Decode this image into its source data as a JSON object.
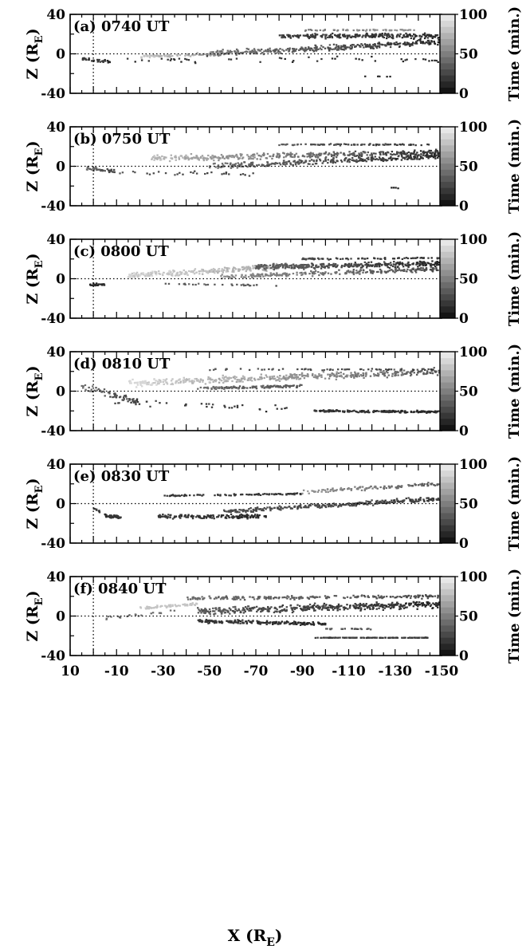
{
  "chart_data": {
    "type": "scatter",
    "xlabel_main": "X (R",
    "xlabel_sub": "E",
    "xlabel_close": ")",
    "ylabel_main": "Z (R",
    "ylabel_sub": "E",
    "ylabel_close": ")",
    "colorbar_label": "Time (min.)",
    "colorbar_range": [
      0,
      100
    ],
    "colorbar_ticks": [
      "0",
      "50",
      "100"
    ],
    "xlim": [
      10,
      -150
    ],
    "ylim": [
      -40,
      40
    ],
    "x_ticks": [
      "10",
      "-10",
      "-30",
      "-50",
      "-70",
      "-90",
      "-110",
      "-130",
      "-150"
    ],
    "y_ticks": [
      "40",
      "0",
      "-40"
    ],
    "reference_x": 0,
    "reference_z": 0,
    "grid": false,
    "panels": [
      {
        "label": "(a) 0740 UT",
        "clusters": [
          {
            "x": [
              -50,
              -150
            ],
            "z": [
              0,
              12
            ],
            "spread": 4,
            "time": [
              45,
              10
            ],
            "count": 350
          },
          {
            "x": [
              -80,
              -150
            ],
            "z": [
              18,
              18
            ],
            "spread": 3.5,
            "time": [
              20,
              10
            ],
            "count": 260
          },
          {
            "x": [
              -20,
              -55
            ],
            "z": [
              -3,
              0
            ],
            "spread": 2,
            "time": [
              80,
              60
            ],
            "count": 80
          },
          {
            "x": [
              -90,
              -140
            ],
            "z": [
              24,
              24
            ],
            "spread": 1,
            "time": [
              45,
              60
            ],
            "count": 60
          },
          {
            "x": [
              -5,
              -150
            ],
            "z": [
              -6,
              -6
            ],
            "spread": 4,
            "time": [
              15,
              10
            ],
            "count": 50
          },
          {
            "x": [
              5,
              -8
            ],
            "z": [
              -5,
              -8
            ],
            "spread": 2,
            "time": [
              20,
              10
            ],
            "count": 30
          },
          {
            "x": [
              -115,
              -130
            ],
            "z": [
              -23,
              -23
            ],
            "spread": 0.5,
            "time": [
              10,
              10
            ],
            "count": 6
          }
        ]
      },
      {
        "label": "(b) 0750 UT",
        "clusters": [
          {
            "x": [
              -25,
              -150
            ],
            "z": [
              8,
              14
            ],
            "spread": 4,
            "time": [
              75,
              10
            ],
            "count": 400
          },
          {
            "x": [
              -50,
              -150
            ],
            "z": [
              0,
              10
            ],
            "spread": 3.5,
            "time": [
              40,
              10
            ],
            "count": 300
          },
          {
            "x": [
              -80,
              -145
            ],
            "z": [
              22,
              22
            ],
            "spread": 1,
            "time": [
              30,
              15
            ],
            "count": 90
          },
          {
            "x": [
              3,
              -10
            ],
            "z": [
              -2,
              -6
            ],
            "spread": 2.5,
            "time": [
              40,
              20
            ],
            "count": 40
          },
          {
            "x": [
              -8,
              -70
            ],
            "z": [
              -6,
              -8
            ],
            "spread": 3,
            "time": [
              30,
              20
            ],
            "count": 30
          },
          {
            "x": [
              -128,
              -132
            ],
            "z": [
              -22,
              -22
            ],
            "spread": 0.5,
            "time": [
              10,
              10
            ],
            "count": 4
          }
        ]
      },
      {
        "label": "(c) 0800 UT",
        "clusters": [
          {
            "x": [
              -15,
              -80
            ],
            "z": [
              3,
              12
            ],
            "spread": 4,
            "time": [
              85,
              70
            ],
            "count": 260
          },
          {
            "x": [
              -70,
              -150
            ],
            "z": [
              12,
              15
            ],
            "spread": 4,
            "time": [
              35,
              10
            ],
            "count": 360
          },
          {
            "x": [
              -55,
              -150
            ],
            "z": [
              2,
              10
            ],
            "spread": 3,
            "time": [
              55,
              25
            ],
            "count": 250
          },
          {
            "x": [
              -90,
              -150
            ],
            "z": [
              20,
              21
            ],
            "spread": 1,
            "time": [
              20,
              15
            ],
            "count": 80
          },
          {
            "x": [
              -30,
              -80
            ],
            "z": [
              -5,
              -7
            ],
            "spread": 1,
            "time": [
              35,
              30
            ],
            "count": 30
          },
          {
            "x": [
              2,
              -5
            ],
            "z": [
              -6,
              -6
            ],
            "spread": 1.5,
            "time": [
              10,
              10
            ],
            "count": 25
          }
        ]
      },
      {
        "label": "(d) 0810 UT",
        "clusters": [
          {
            "x": [
              -15,
              -150
            ],
            "z": [
              8,
              20
            ],
            "spread": 5,
            "time": [
              90,
              30
            ],
            "count": 450
          },
          {
            "x": [
              -45,
              -90
            ],
            "z": [
              3,
              5
            ],
            "spread": 2,
            "time": [
              40,
              30
            ],
            "count": 120
          },
          {
            "x": [
              -95,
              -150
            ],
            "z": [
              -20,
              -21
            ],
            "spread": 1.5,
            "time": [
              15,
              10
            ],
            "count": 200
          },
          {
            "x": [
              -45,
              -150
            ],
            "z": [
              22,
              22
            ],
            "spread": 1,
            "time": [
              30,
              20
            ],
            "count": 60
          },
          {
            "x": [
              5,
              -20
            ],
            "z": [
              5,
              -12
            ],
            "spread": 6,
            "time": [
              40,
              20
            ],
            "count": 60
          },
          {
            "x": [
              -5,
              -90
            ],
            "z": [
              -10,
              -18
            ],
            "spread": 5,
            "time": [
              20,
              15
            ],
            "count": 40
          }
        ]
      },
      {
        "label": "(e) 0830 UT",
        "clusters": [
          {
            "x": [
              -28,
              -75
            ],
            "z": [
              -13,
              -13
            ],
            "spread": 3,
            "time": [
              15,
              10
            ],
            "count": 150
          },
          {
            "x": [
              -55,
              -150
            ],
            "z": [
              -8,
              5
            ],
            "spread": 3,
            "time": [
              25,
              20
            ],
            "count": 300
          },
          {
            "x": [
              -30,
              -90
            ],
            "z": [
              8,
              10
            ],
            "spread": 1,
            "time": [
              15,
              15
            ],
            "count": 100
          },
          {
            "x": [
              -90,
              -150
            ],
            "z": [
              12,
              20
            ],
            "spread": 3,
            "time": [
              60,
              30
            ],
            "count": 120
          },
          {
            "x": [
              -5,
              -12
            ],
            "z": [
              -12,
              -14
            ],
            "spread": 2,
            "time": [
              15,
              15
            ],
            "count": 50
          },
          {
            "x": [
              0,
              -3
            ],
            "z": [
              -5,
              -8
            ],
            "spread": 2,
            "time": [
              20,
              20
            ],
            "count": 10
          }
        ]
      },
      {
        "label": "(f) 0840 UT",
        "clusters": [
          {
            "x": [
              -45,
              -150
            ],
            "z": [
              5,
              12
            ],
            "spread": 5,
            "time": [
              30,
              10
            ],
            "count": 450
          },
          {
            "x": [
              -40,
              -150
            ],
            "z": [
              18,
              20
            ],
            "spread": 2.5,
            "time": [
              40,
              25
            ],
            "count": 220
          },
          {
            "x": [
              -45,
              -100
            ],
            "z": [
              -5,
              -8
            ],
            "spread": 2.5,
            "time": [
              15,
              10
            ],
            "count": 200
          },
          {
            "x": [
              -20,
              -45
            ],
            "z": [
              8,
              12
            ],
            "spread": 2,
            "time": [
              80,
              80
            ],
            "count": 60
          },
          {
            "x": [
              -95,
              -145
            ],
            "z": [
              -22,
              -22
            ],
            "spread": 0.4,
            "time": [
              20,
              20
            ],
            "count": 120
          },
          {
            "x": [
              -5,
              -35
            ],
            "z": [
              -3,
              5
            ],
            "spread": 3,
            "time": [
              40,
              40
            ],
            "count": 20
          },
          {
            "x": [
              -100,
              -120
            ],
            "z": [
              -13,
              -13
            ],
            "spread": 0.8,
            "time": [
              30,
              30
            ],
            "count": 25
          }
        ]
      }
    ]
  }
}
